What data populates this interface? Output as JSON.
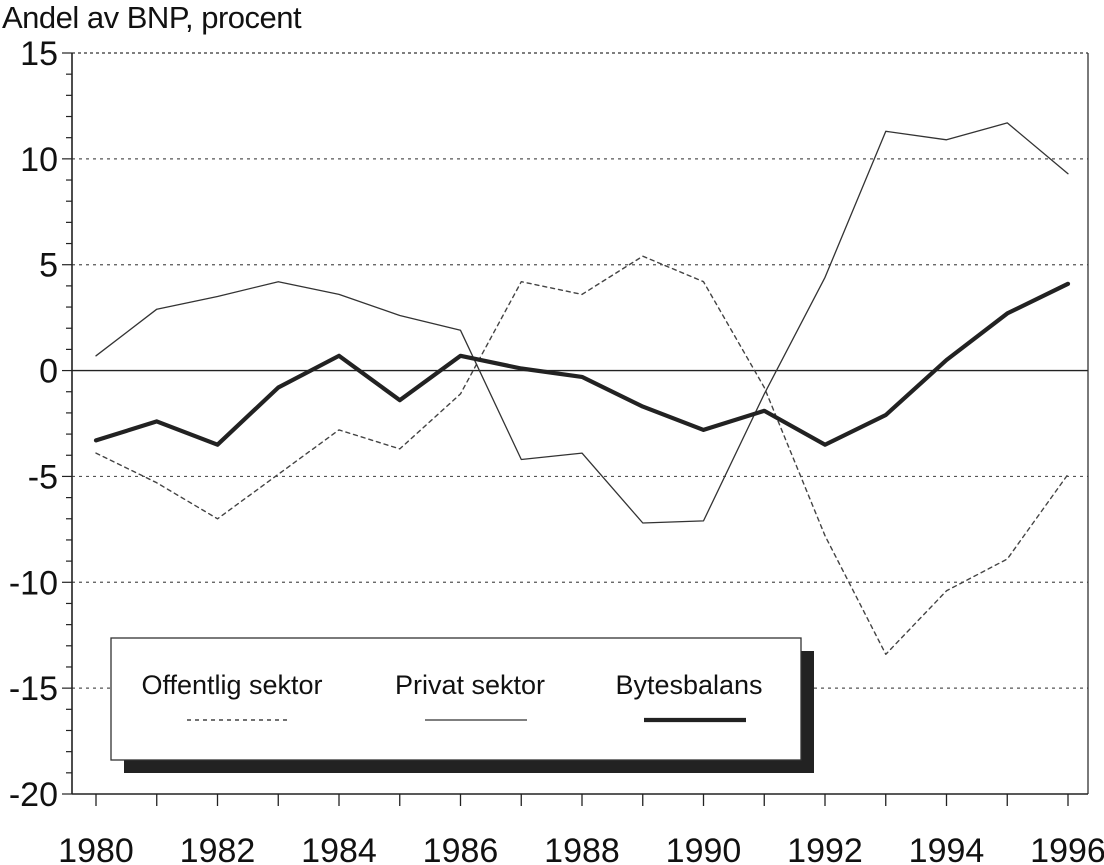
{
  "chart_data": {
    "type": "line",
    "title": "",
    "ylabel": "Andel av BNP, procent",
    "xlabel": "",
    "x": [
      1980,
      1981,
      1982,
      1983,
      1984,
      1985,
      1986,
      1987,
      1988,
      1989,
      1990,
      1991,
      1992,
      1993,
      1994,
      1995,
      1996
    ],
    "xtick_labels": [
      "1980",
      "1982",
      "1984",
      "1986",
      "1988",
      "1990",
      "1992",
      "1994",
      "1996"
    ],
    "xticks": [
      1980,
      1982,
      1984,
      1986,
      1988,
      1990,
      1992,
      1994,
      1996
    ],
    "yticks": [
      15,
      10,
      5,
      0,
      -5,
      -10,
      -15,
      -20
    ],
    "ytick_labels": [
      "15",
      "10",
      "5",
      "0",
      "-5",
      "-10",
      "-15",
      "-20"
    ],
    "ylim": [
      -20,
      15
    ],
    "xlim": [
      1980,
      1996
    ],
    "grid": "horizontal dotted",
    "legend_position": "bottom-left",
    "series": [
      {
        "name": "Offentlig sektor",
        "style": "dotted",
        "color": "#444444",
        "values": [
          -3.9,
          -5.3,
          -7.0,
          -4.9,
          -2.8,
          -3.7,
          -1.1,
          4.2,
          3.6,
          5.4,
          4.2,
          -0.8,
          -7.8,
          -13.4,
          -10.4,
          -8.9,
          -4.9
        ]
      },
      {
        "name": "Privat sektor",
        "style": "thin",
        "color": "#333333",
        "values": [
          0.7,
          2.9,
          3.5,
          4.2,
          3.6,
          2.6,
          1.9,
          -4.2,
          -3.9,
          -7.2,
          -7.1,
          -1.1,
          4.4,
          11.3,
          10.9,
          11.7,
          9.3
        ]
      },
      {
        "name": "Bytesbalans",
        "style": "thick",
        "color": "#222222",
        "values": [
          -3.3,
          -2.4,
          -3.5,
          -0.8,
          0.7,
          -1.4,
          0.7,
          0.1,
          -0.3,
          -1.7,
          -2.8,
          -1.9,
          -3.5,
          -2.1,
          0.5,
          2.7,
          4.1
        ]
      }
    ]
  }
}
